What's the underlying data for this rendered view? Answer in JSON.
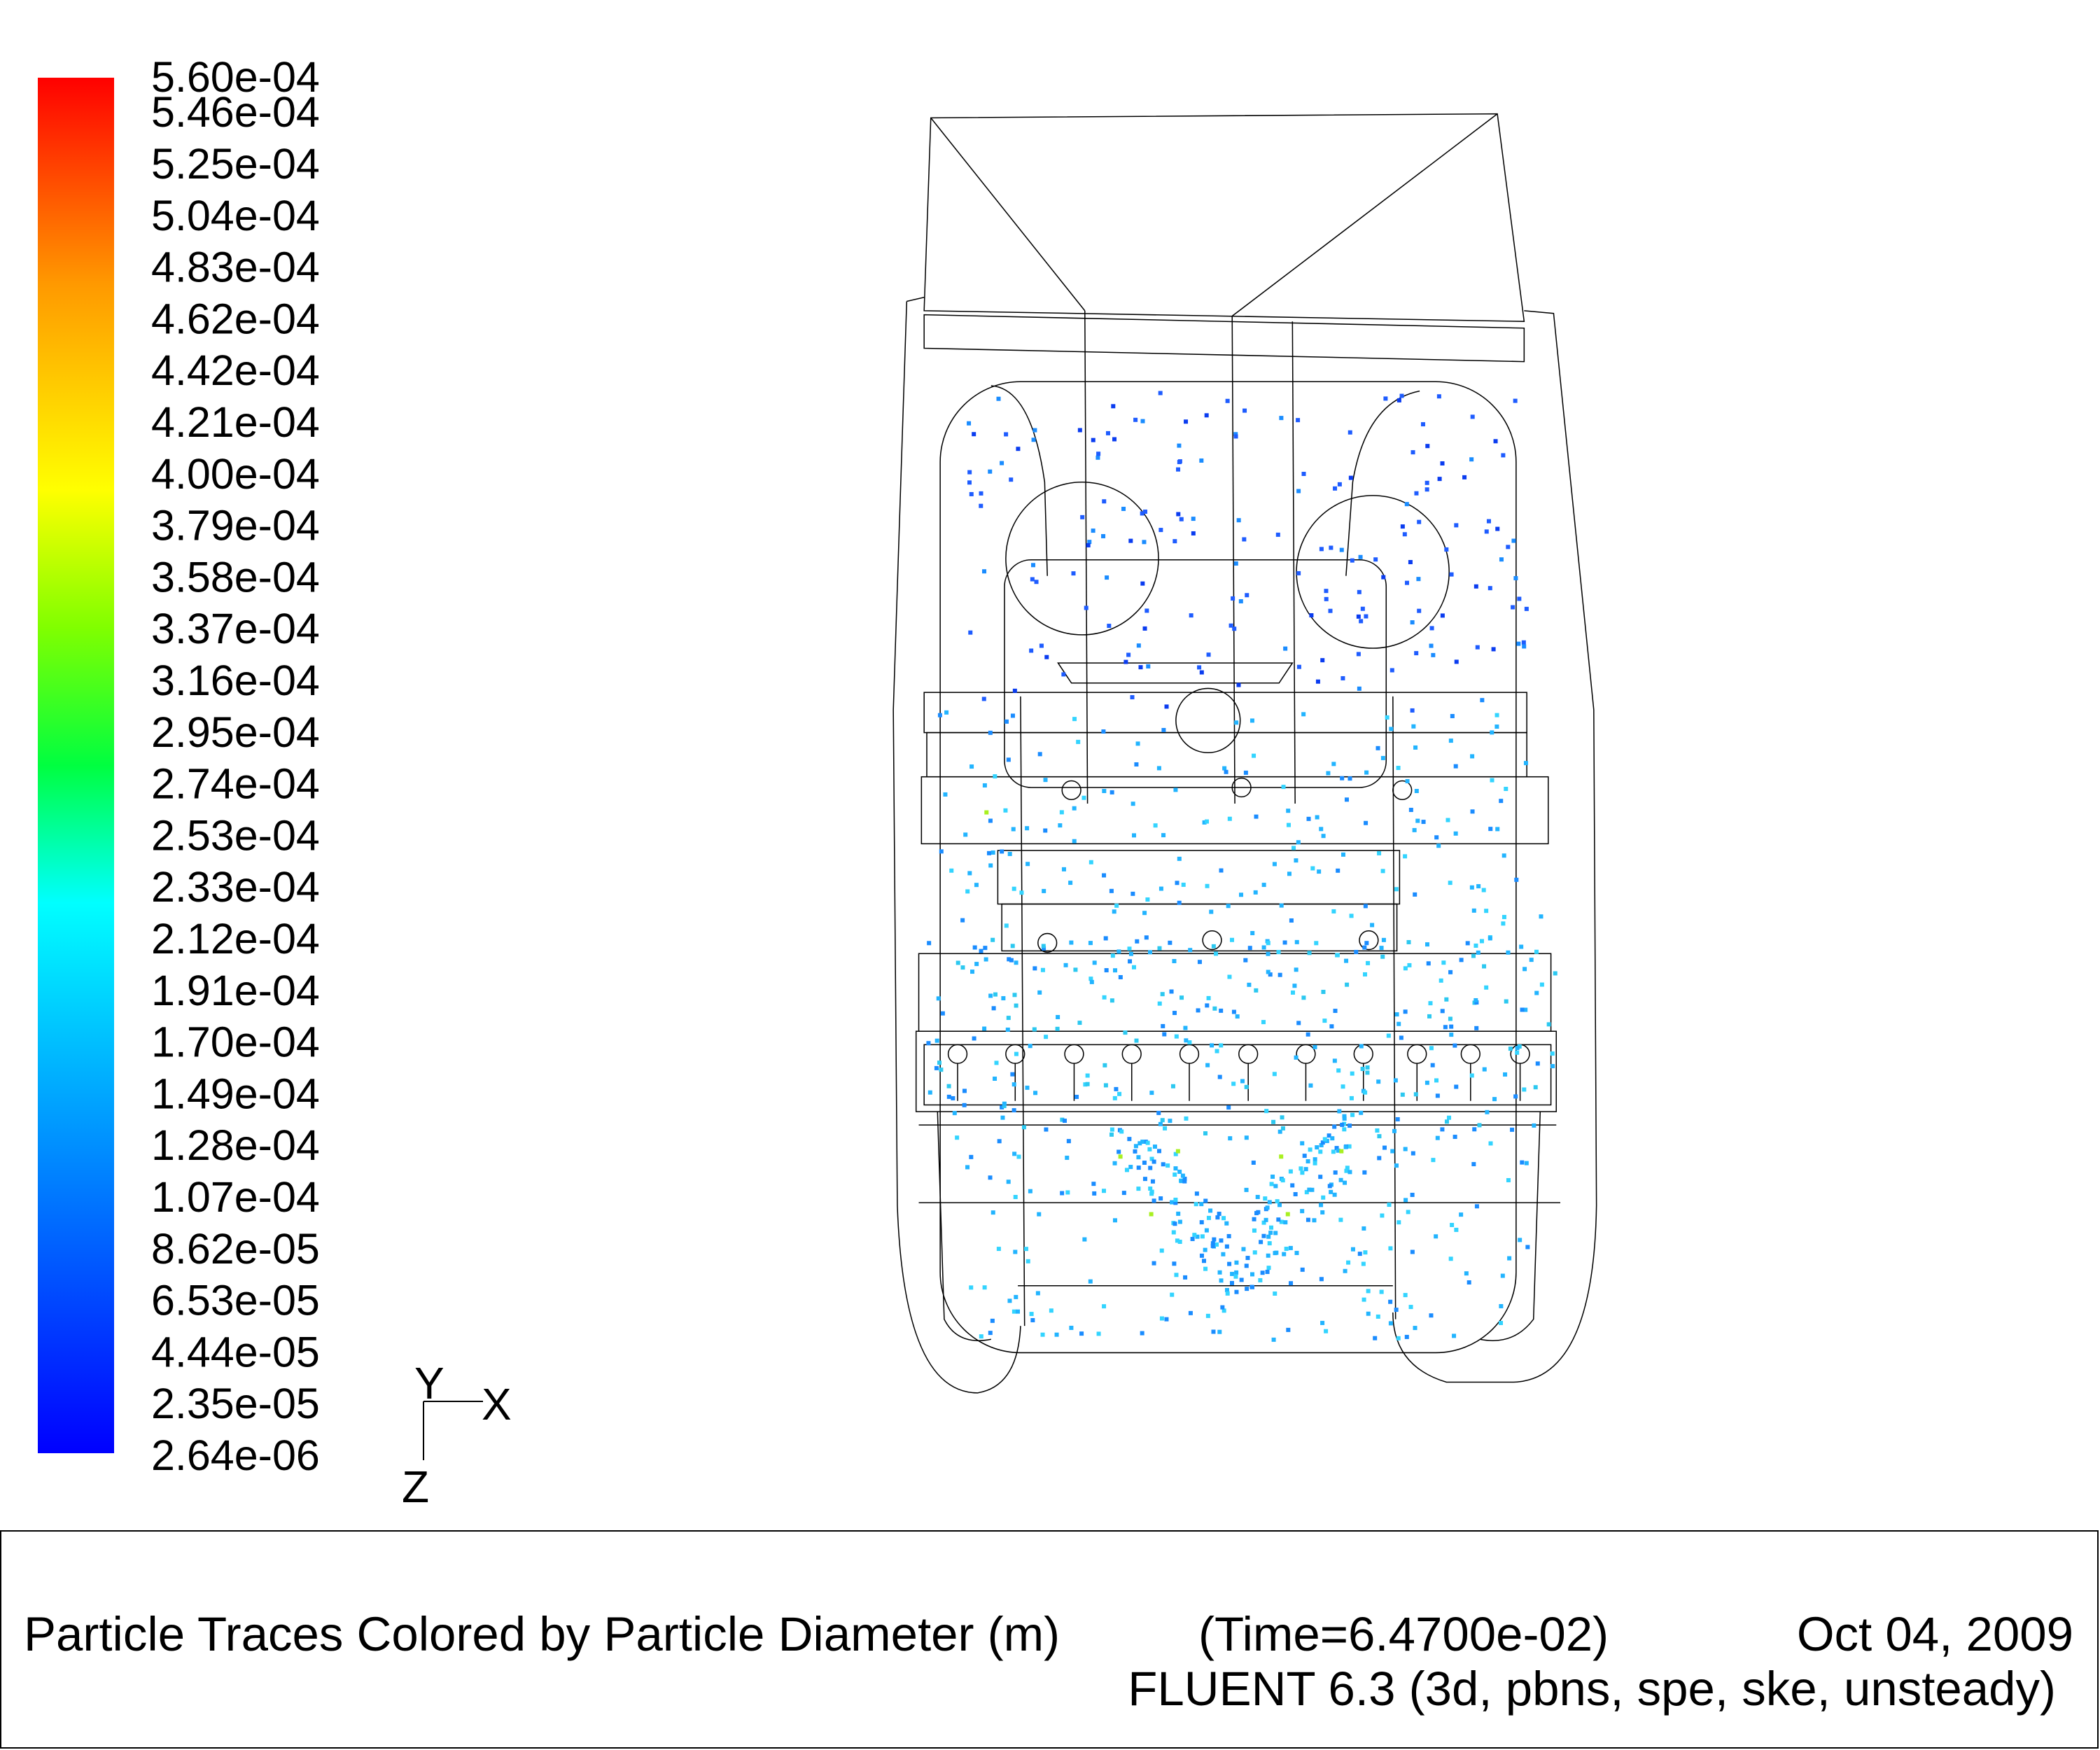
{
  "colorbar": {
    "labels": [
      "5.60e-04",
      "5.46e-04",
      "5.25e-04",
      "5.04e-04",
      "4.83e-04",
      "4.62e-04",
      "4.42e-04",
      "4.21e-04",
      "4.00e-04",
      "3.79e-04",
      "3.58e-04",
      "3.37e-04",
      "3.16e-04",
      "2.95e-04",
      "2.74e-04",
      "2.53e-04",
      "2.33e-04",
      "2.12e-04",
      "1.91e-04",
      "1.70e-04",
      "1.49e-04",
      "1.28e-04",
      "1.07e-04",
      "8.62e-05",
      "6.53e-05",
      "4.44e-05",
      "2.35e-05",
      "2.64e-06"
    ]
  },
  "axes": {
    "y": "Y",
    "x": "X",
    "z": "Z"
  },
  "footer": {
    "title": "Particle Traces Colored by Particle Diameter (m)",
    "time": "(Time=6.4700e-02)",
    "date": "Oct 04, 2009",
    "solver": "FLUENT 6.3 (3d, pbns, spe, ske, unsteady)"
  }
}
